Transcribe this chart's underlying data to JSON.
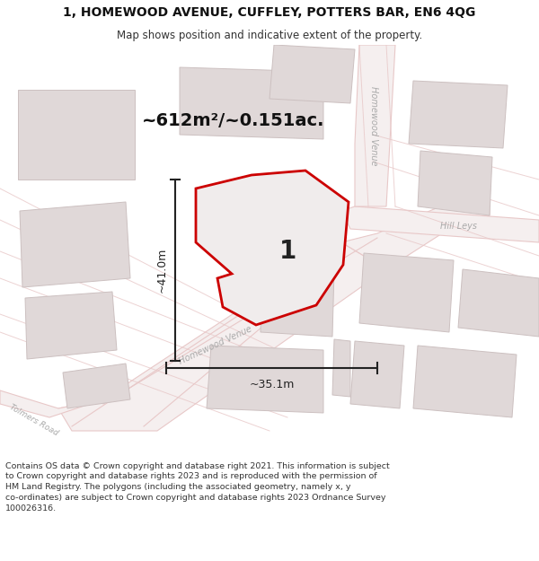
{
  "title": "1, HOMEWOOD AVENUE, CUFFLEY, POTTERS BAR, EN6 4QG",
  "subtitle": "Map shows position and indicative extent of the property.",
  "area_text": "~612m²/~0.151ac.",
  "width_text": "~35.1m",
  "height_text": "~41.0m",
  "property_number": "1",
  "copyright_text": "Contains OS data © Crown copyright and database right 2021. This information is subject to Crown copyright and database rights 2023 and is reproduced with the permission of HM Land Registry. The polygons (including the associated geometry, namely x, y co-ordinates) are subject to Crown copyright and database rights 2023 Ordnance Survey 100026316.",
  "bg_color": "#f7f4f4",
  "road_color": "#e8c8c8",
  "road_fill": "#f5efef",
  "building_color": "#e0d8d8",
  "building_edge": "#ccc0c0",
  "plot_color": "#cc0000",
  "plot_fill": "#f0ecec",
  "street_label_color": "#aaaaaa",
  "dim_color": "#222222",
  "title_color": "#111111",
  "subtitle_color": "#333333",
  "copyright_color": "#333333",
  "street_road_color": "#999999"
}
